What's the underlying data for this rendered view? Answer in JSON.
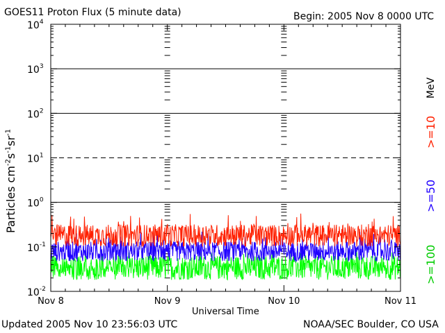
{
  "header": {
    "title": "GOES11 Proton Flux (5 minute data)",
    "begin": "Begin: 2005 Nov 8 0000 UTC"
  },
  "footer": {
    "updated": "Updated 2005 Nov 10 23:56:03 UTC",
    "source": "NOAA/SEC Boulder, CO USA"
  },
  "colors": {
    "ge10": "#ff2000",
    "ge50": "#2000ff",
    "ge100": "#00ff00",
    "axis": "#000000"
  },
  "chart_data": {
    "type": "line",
    "title": "GOES11 Proton Flux (5 minute data)",
    "xlabel": "Universal Time",
    "ylabel": "Particles cm-2s-1sr-1",
    "yscale": "log",
    "ylim": [
      0.01,
      10000
    ],
    "yticks": [
      {
        "base": "10",
        "exp": "-2"
      },
      {
        "base": "10",
        "exp": "-1"
      },
      {
        "base": "10",
        "exp": "0"
      },
      {
        "base": "10",
        "exp": "1"
      },
      {
        "base": "10",
        "exp": "2"
      },
      {
        "base": "10",
        "exp": "3"
      },
      {
        "base": "10",
        "exp": "4"
      }
    ],
    "x_ticklabels": [
      "Nov 8",
      "Nov 9",
      "Nov 10",
      "Nov 11"
    ],
    "xlim_days": [
      0,
      3
    ],
    "threshold_lines": [
      {
        "value": 1,
        "style": "solid"
      },
      {
        "value": 10,
        "style": "dashed"
      },
      {
        "value": 100,
        "style": "solid"
      },
      {
        "value": 1000,
        "style": "solid"
      }
    ],
    "unit_label": "MeV",
    "series": [
      {
        "name": ">=10",
        "color": "#ff2000",
        "typical_range": [
          0.1,
          0.55
        ]
      },
      {
        "name": ">=50",
        "color": "#2000ff",
        "typical_range": [
          0.04,
          0.2
        ]
      },
      {
        "name": ">=100",
        "color": "#00ff00",
        "typical_range": [
          0.015,
          0.07
        ]
      }
    ]
  }
}
